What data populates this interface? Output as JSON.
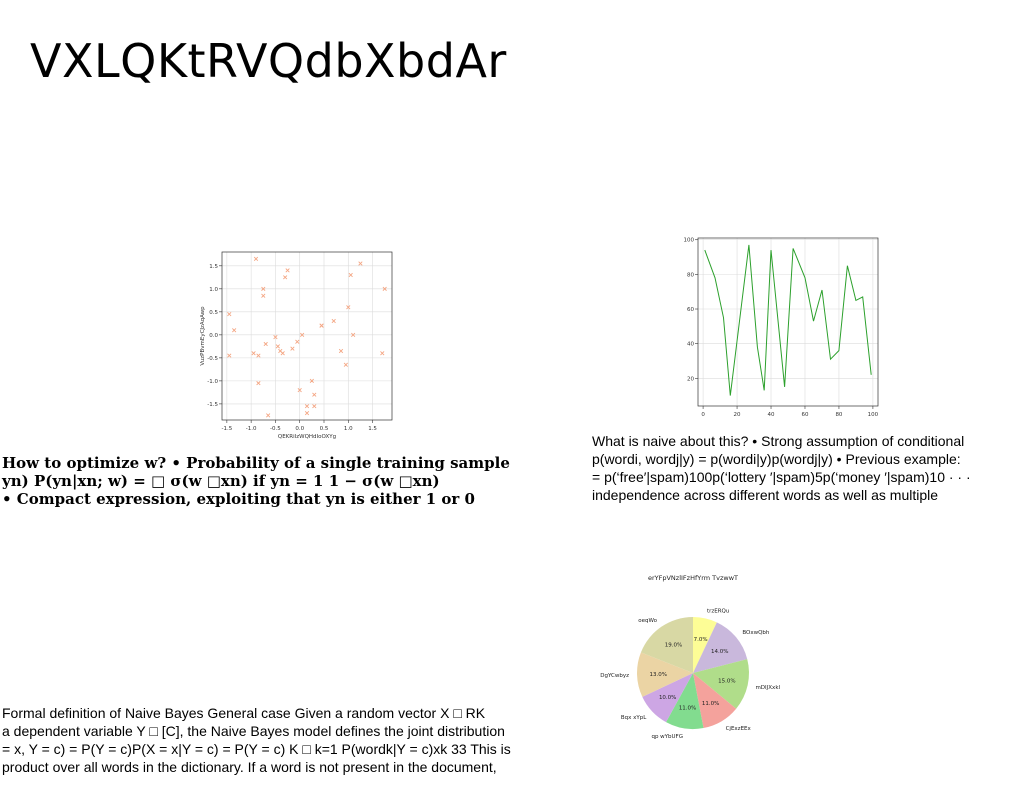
{
  "slide": {
    "title": "VXLQKtRVQdbXbdAr",
    "block1": [
      "How to optimize w? • Probability of a single training sample",
      "yn) P(yn|xn; w) = □ σ(w □xn) if yn = 1 1 − σ(w □xn)",
      "• Compact expression, exploiting that yn is either 1 or 0"
    ],
    "block2": [
      "What is naive about this? • Strong assumption of conditional",
      "p(wordi, wordj|y) = p(wordi|y)p(wordj|y) • Previous example:",
      "= p(‘free′|spam)100p(‘lottery ′|spam)5p(‘money ′|spam)10 · · ·",
      "independence across different words as well as multiple"
    ],
    "block3": [
      "Formal definition of Naive Bayes General case Given a random vector X □ RK",
      "a dependent variable Y □ [C], the Naive Bayes model defines the joint distribution",
      "= x, Y = c) = P(Y = c)P(X = x|Y = c) = P(Y = c) K □ k=1 P(wordk|Y = c)xk 33 This is",
      "product over all words in the dictionary. If a word is not present in the document,"
    ]
  },
  "chart_data": [
    {
      "type": "scatter",
      "title": "",
      "xlabel": "QEKRiIzWQHdIoOXYg",
      "ylabel": "VuzPBvmEyCJzAqAwp",
      "xlim": [
        -1.6,
        1.9
      ],
      "ylim": [
        -1.85,
        1.8
      ],
      "xticks": [
        "-1.5",
        "-1.0",
        "-0.5",
        "0.0",
        "0.5",
        "1.0",
        "1.5"
      ],
      "yticks": [
        "-1.5",
        "-1.0",
        "-0.5",
        "0.0",
        "0.5",
        "1.0",
        "1.5"
      ],
      "marker": "x",
      "color": "#f4a582",
      "x": [
        -1.45,
        -1.45,
        -1.35,
        -0.95,
        -0.9,
        -0.85,
        -0.85,
        -0.75,
        -0.75,
        -0.7,
        -0.65,
        -0.5,
        -0.45,
        -0.4,
        -0.35,
        -0.3,
        -0.25,
        -0.15,
        -0.05,
        0.0,
        0.05,
        0.15,
        0.15,
        0.25,
        0.3,
        0.3,
        0.45,
        0.45,
        0.7,
        0.85,
        0.95,
        1.0,
        1.05,
        1.1,
        1.25,
        1.7,
        1.75
      ],
      "y": [
        0.45,
        -0.45,
        0.1,
        -0.4,
        1.65,
        -0.45,
        -1.05,
        0.85,
        1.0,
        -0.2,
        -1.75,
        -0.05,
        -0.25,
        -0.35,
        -0.4,
        1.25,
        1.4,
        -0.3,
        -0.15,
        -1.2,
        0.0,
        -1.7,
        -1.55,
        -1.0,
        -1.3,
        -1.55,
        0.2,
        0.2,
        0.3,
        -0.35,
        -0.65,
        0.6,
        1.3,
        0.0,
        1.55,
        -0.4,
        1.0
      ]
    },
    {
      "type": "line",
      "title": "",
      "xlim": [
        -3,
        103
      ],
      "ylim": [
        4,
        101
      ],
      "xticks": [
        "0",
        "20",
        "40",
        "60",
        "80",
        "100"
      ],
      "yticks": [
        "20",
        "40",
        "60",
        "80",
        "100"
      ],
      "color": "#2ca02c",
      "x": [
        1,
        7,
        12,
        16,
        27,
        32,
        36,
        40,
        48,
        53,
        60,
        65,
        70,
        75,
        80,
        85,
        90,
        94,
        99
      ],
      "y": [
        94,
        78,
        55,
        10,
        97,
        38,
        13,
        94,
        15,
        95,
        78,
        53,
        71,
        31,
        36,
        85,
        65,
        67,
        22
      ]
    },
    {
      "type": "pie",
      "title": "erYFpVNzlIFzHfYrm TvzwwT",
      "labels": [
        "trzERQu",
        "BOxwQbh",
        "mDIJXxkl",
        "CjExzEEx",
        "qp wYbUFG",
        "Bqx xYpL",
        "DgYCwbyz",
        "oeqWo"
      ],
      "values": [
        7.0,
        14.0,
        15.0,
        11.0,
        11.0,
        10.0,
        13.0,
        19.0
      ],
      "value_labels": [
        "7.0%",
        "14.0%",
        "15.0%",
        "11.0%",
        "11.0%",
        "10.0%",
        "13.0%",
        "19.0%"
      ],
      "colors": [
        "#fdfd96",
        "#c9b8dc",
        "#b0dd8a",
        "#f4a29c",
        "#82dc8f",
        "#cda6e4",
        "#ebd4a4",
        "#d8d8a4"
      ]
    }
  ]
}
